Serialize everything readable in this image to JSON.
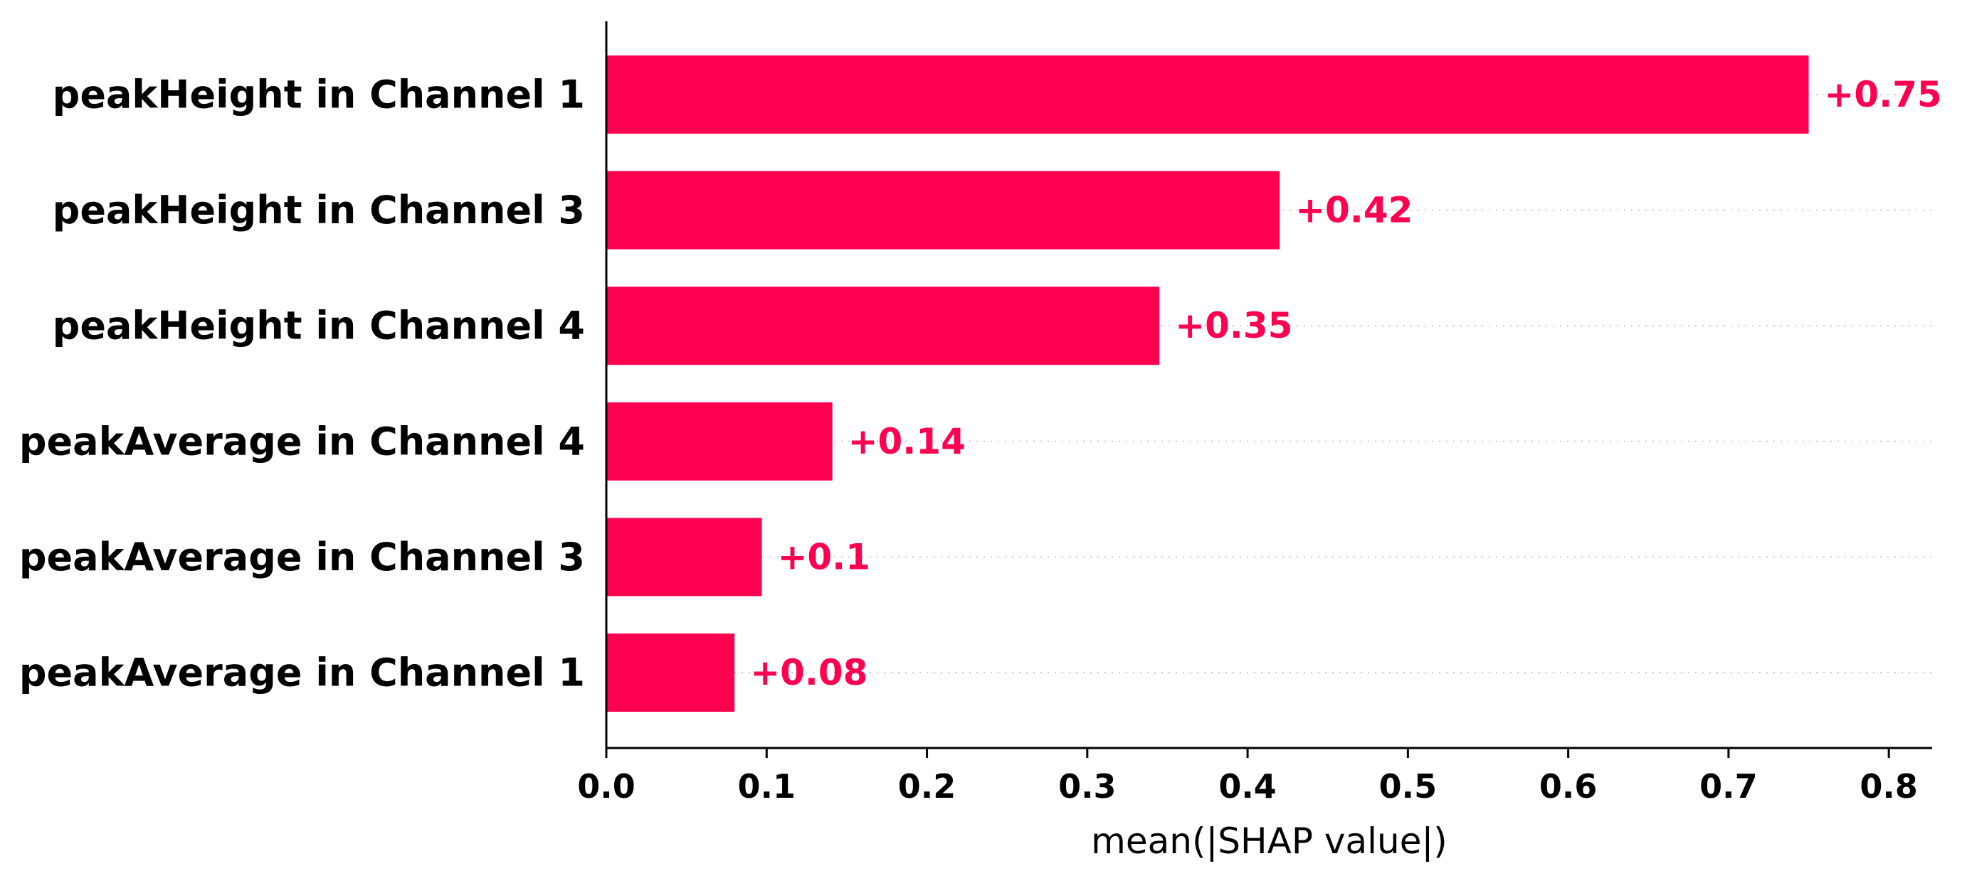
{
  "chart_data": {
    "type": "bar",
    "orientation": "horizontal",
    "title": "",
    "xlabel": "mean(|SHAP value|)",
    "ylabel": "",
    "xlim": [
      0,
      0.827
    ],
    "xticks": [
      0.0,
      0.1,
      0.2,
      0.3,
      0.4,
      0.5,
      0.6,
      0.7,
      0.8
    ],
    "xtick_labels": [
      "0.0",
      "0.1",
      "0.2",
      "0.3",
      "0.4",
      "0.5",
      "0.6",
      "0.7",
      "0.8"
    ],
    "categories": [
      "peakHeight in Channel 1",
      "peakHeight in Channel 3",
      "peakHeight in Channel 4",
      "peakAverage in Channel 4",
      "peakAverage in Channel 3",
      "peakAverage in Channel 1"
    ],
    "values": [
      0.75,
      0.42,
      0.345,
      0.141,
      0.097,
      0.08
    ],
    "value_labels": [
      "+0.75",
      "+0.42",
      "+0.35",
      "+0.14",
      "+0.1",
      "+0.08"
    ],
    "bar_color": "#ff0051",
    "label_color": "#ff0051",
    "guide_line_color": "#cccccc",
    "axis_color": "#000000",
    "grid": false
  }
}
